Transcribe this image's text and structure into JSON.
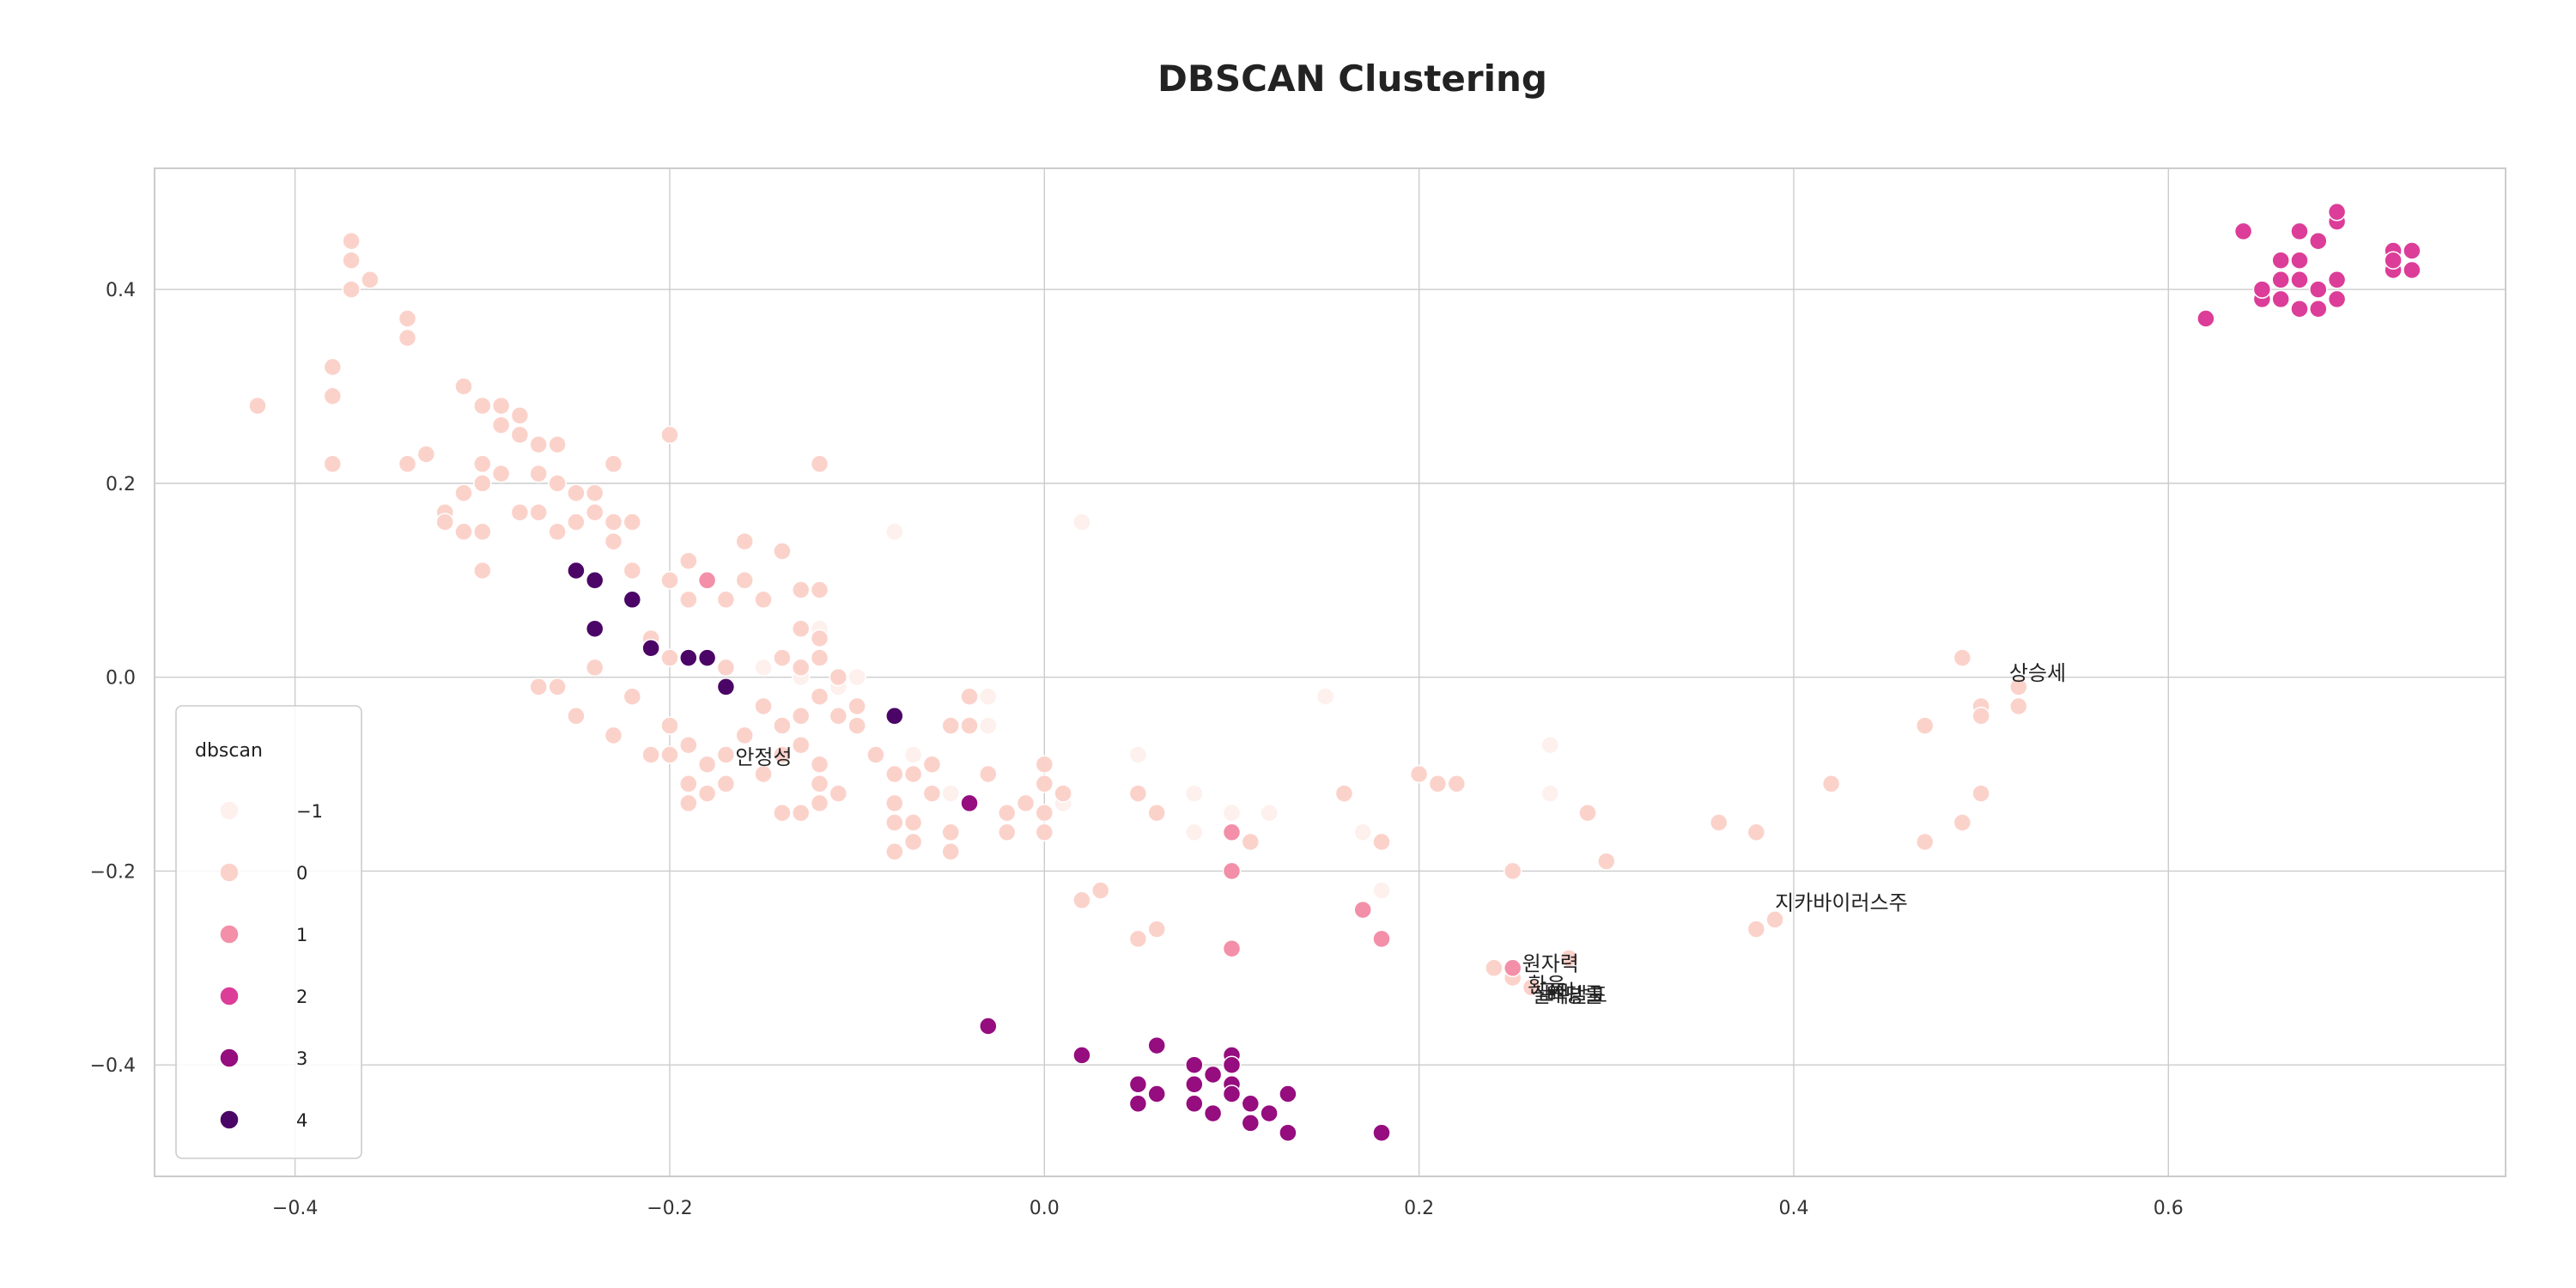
{
  "chart_data": {
    "type": "scatter",
    "title": "DBSCAN Clustering",
    "xlabel": "",
    "ylabel": "",
    "xlim": [
      -0.475,
      0.78
    ],
    "ylim": [
      -0.515,
      0.525
    ],
    "x_ticks": [
      -0.4,
      -0.2,
      0.0,
      0.2,
      0.4,
      0.6
    ],
    "x_tick_labels": [
      "−0.4",
      "−0.2",
      "0.0",
      "0.2",
      "0.4",
      "0.6"
    ],
    "y_ticks": [
      -0.4,
      -0.2,
      0.0,
      0.2,
      0.4
    ],
    "y_tick_labels": [
      "−0.4",
      "−0.2",
      "0.0",
      "0.2",
      "0.4"
    ],
    "grid": true,
    "legend": {
      "title": "dbscan",
      "position": "lower-left",
      "entries": [
        {
          "label": "−1",
          "color": "#fdf0ed"
        },
        {
          "label": "0",
          "color": "#fbd2ca"
        },
        {
          "label": "1",
          "color": "#f38fa8"
        },
        {
          "label": "2",
          "color": "#dc3d98"
        },
        {
          "label": "3",
          "color": "#950d7e"
        },
        {
          "label": "4",
          "color": "#4b0566"
        }
      ]
    },
    "series": [
      {
        "label": "−1",
        "color": "#fdf0ed",
        "points": [
          [
            -0.08,
            0.15
          ],
          [
            0.02,
            0.16
          ],
          [
            -0.13,
            0.0
          ],
          [
            -0.1,
            0.0
          ],
          [
            -0.15,
            0.01
          ],
          [
            -0.11,
            -0.01
          ],
          [
            -0.03,
            -0.02
          ],
          [
            -0.03,
            -0.05
          ],
          [
            -0.07,
            -0.08
          ],
          [
            0.05,
            -0.08
          ],
          [
            0.08,
            -0.12
          ],
          [
            0.1,
            -0.14
          ],
          [
            0.12,
            -0.14
          ],
          [
            0.15,
            -0.02
          ],
          [
            0.17,
            -0.16
          ],
          [
            0.18,
            -0.22
          ],
          [
            0.27,
            -0.07
          ],
          [
            0.27,
            -0.12
          ],
          [
            -0.05,
            -0.12
          ],
          [
            0.01,
            -0.13
          ],
          [
            -0.12,
            0.05
          ],
          [
            -0.14,
            0.13
          ],
          [
            0.08,
            -0.16
          ]
        ]
      },
      {
        "label": "0",
        "color": "#fbd2ca",
        "points": [
          [
            -0.42,
            0.28
          ],
          [
            -0.37,
            0.45
          ],
          [
            -0.37,
            0.43
          ],
          [
            -0.36,
            0.41
          ],
          [
            -0.37,
            0.4
          ],
          [
            -0.38,
            0.32
          ],
          [
            -0.38,
            0.29
          ],
          [
            -0.38,
            0.22
          ],
          [
            -0.34,
            0.37
          ],
          [
            -0.34,
            0.35
          ],
          [
            -0.33,
            0.23
          ],
          [
            -0.34,
            0.22
          ],
          [
            -0.32,
            0.17
          ],
          [
            -0.32,
            0.16
          ],
          [
            -0.31,
            0.3
          ],
          [
            -0.3,
            0.28
          ],
          [
            -0.29,
            0.28
          ],
          [
            -0.28,
            0.27
          ],
          [
            -0.29,
            0.26
          ],
          [
            -0.28,
            0.25
          ],
          [
            -0.27,
            0.24
          ],
          [
            -0.26,
            0.24
          ],
          [
            -0.3,
            0.22
          ],
          [
            -0.29,
            0.21
          ],
          [
            -0.3,
            0.2
          ],
          [
            -0.31,
            0.19
          ],
          [
            -0.27,
            0.21
          ],
          [
            -0.26,
            0.2
          ],
          [
            -0.25,
            0.19
          ],
          [
            -0.24,
            0.19
          ],
          [
            -0.24,
            0.17
          ],
          [
            -0.25,
            0.16
          ],
          [
            -0.26,
            0.15
          ],
          [
            -0.27,
            0.17
          ],
          [
            -0.28,
            0.17
          ],
          [
            -0.3,
            0.15
          ],
          [
            -0.31,
            0.15
          ],
          [
            -0.3,
            0.11
          ],
          [
            -0.23,
            0.22
          ],
          [
            -0.22,
            0.16
          ],
          [
            -0.23,
            0.16
          ],
          [
            -0.23,
            0.14
          ],
          [
            -0.22,
            0.11
          ],
          [
            -0.2,
            0.25
          ],
          [
            -0.19,
            0.12
          ],
          [
            -0.2,
            0.1
          ],
          [
            -0.19,
            0.08
          ],
          [
            -0.17,
            0.08
          ],
          [
            -0.16,
            0.14
          ],
          [
            -0.16,
            0.1
          ],
          [
            -0.15,
            0.08
          ],
          [
            -0.14,
            0.13
          ],
          [
            -0.13,
            0.09
          ],
          [
            -0.12,
            0.09
          ],
          [
            -0.12,
            0.22
          ],
          [
            -0.13,
            0.05
          ],
          [
            -0.12,
            0.04
          ],
          [
            -0.21,
            0.04
          ],
          [
            -0.2,
            0.02
          ],
          [
            -0.18,
            0.02
          ],
          [
            -0.17,
            0.01
          ],
          [
            -0.14,
            0.02
          ],
          [
            -0.13,
            0.01
          ],
          [
            -0.12,
            0.02
          ],
          [
            -0.11,
            0.0
          ],
          [
            -0.12,
            -0.02
          ],
          [
            -0.15,
            -0.03
          ],
          [
            -0.14,
            -0.05
          ],
          [
            -0.13,
            -0.04
          ],
          [
            -0.16,
            -0.06
          ],
          [
            -0.17,
            -0.08
          ],
          [
            -0.18,
            -0.09
          ],
          [
            -0.19,
            -0.07
          ],
          [
            -0.2,
            -0.08
          ],
          [
            -0.21,
            -0.08
          ],
          [
            -0.2,
            -0.05
          ],
          [
            -0.23,
            -0.06
          ],
          [
            -0.25,
            -0.04
          ],
          [
            -0.26,
            -0.01
          ],
          [
            -0.27,
            -0.01
          ],
          [
            -0.24,
            0.01
          ],
          [
            -0.22,
            -0.02
          ],
          [
            -0.19,
            -0.11
          ],
          [
            -0.19,
            -0.13
          ],
          [
            -0.18,
            -0.12
          ],
          [
            -0.17,
            -0.11
          ],
          [
            -0.15,
            -0.1
          ],
          [
            -0.14,
            -0.08
          ],
          [
            -0.13,
            -0.07
          ],
          [
            -0.12,
            -0.09
          ],
          [
            -0.12,
            -0.11
          ],
          [
            -0.12,
            -0.13
          ],
          [
            -0.13,
            -0.14
          ],
          [
            -0.14,
            -0.14
          ],
          [
            -0.1,
            -0.05
          ],
          [
            -0.09,
            -0.08
          ],
          [
            -0.08,
            -0.1
          ],
          [
            -0.07,
            -0.1
          ],
          [
            -0.08,
            -0.13
          ],
          [
            -0.08,
            -0.15
          ],
          [
            -0.07,
            -0.15
          ],
          [
            -0.08,
            -0.18
          ],
          [
            -0.07,
            -0.17
          ],
          [
            -0.05,
            -0.16
          ],
          [
            -0.05,
            -0.18
          ],
          [
            -0.06,
            -0.12
          ],
          [
            -0.06,
            -0.09
          ],
          [
            -0.05,
            -0.05
          ],
          [
            -0.04,
            -0.05
          ],
          [
            -0.04,
            -0.02
          ],
          [
            -0.03,
            -0.1
          ],
          [
            -0.02,
            -0.14
          ],
          [
            -0.02,
            -0.16
          ],
          [
            -0.01,
            -0.13
          ],
          [
            0.0,
            -0.14
          ],
          [
            0.01,
            -0.12
          ],
          [
            0.0,
            -0.11
          ],
          [
            0.0,
            -0.09
          ],
          [
            0.0,
            -0.16
          ],
          [
            0.02,
            -0.23
          ],
          [
            0.03,
            -0.22
          ],
          [
            0.05,
            -0.12
          ],
          [
            0.06,
            -0.14
          ],
          [
            0.05,
            -0.27
          ],
          [
            0.06,
            -0.26
          ],
          [
            0.1,
            -0.28
          ],
          [
            0.11,
            -0.17
          ],
          [
            0.16,
            -0.12
          ],
          [
            0.18,
            -0.17
          ],
          [
            0.2,
            -0.1
          ],
          [
            0.21,
            -0.11
          ],
          [
            0.22,
            -0.11
          ],
          [
            0.25,
            -0.2
          ],
          [
            0.24,
            -0.3
          ],
          [
            0.25,
            -0.31
          ],
          [
            0.26,
            -0.32
          ],
          [
            0.28,
            -0.29
          ],
          [
            0.29,
            -0.14
          ],
          [
            0.3,
            -0.19
          ],
          [
            0.36,
            -0.15
          ],
          [
            0.38,
            -0.16
          ],
          [
            0.38,
            -0.26
          ],
          [
            0.39,
            -0.25
          ],
          [
            0.42,
            -0.11
          ],
          [
            0.47,
            -0.05
          ],
          [
            0.47,
            -0.17
          ],
          [
            0.49,
            -0.15
          ],
          [
            0.5,
            -0.12
          ],
          [
            0.49,
            0.02
          ],
          [
            0.5,
            -0.03
          ],
          [
            0.5,
            -0.04
          ],
          [
            0.52,
            -0.01
          ],
          [
            0.52,
            -0.03
          ],
          [
            -0.11,
            -0.04
          ],
          [
            -0.1,
            -0.03
          ],
          [
            -0.11,
            -0.12
          ]
        ]
      },
      {
        "label": "1",
        "color": "#f38fa8",
        "points": [
          [
            -0.18,
            0.1
          ],
          [
            0.1,
            -0.16
          ],
          [
            0.1,
            -0.2
          ],
          [
            0.1,
            -0.28
          ],
          [
            0.17,
            -0.24
          ],
          [
            0.18,
            -0.27
          ],
          [
            0.25,
            -0.3
          ]
        ]
      },
      {
        "label": "2",
        "color": "#dc3d98",
        "points": [
          [
            0.62,
            0.37
          ],
          [
            0.64,
            0.46
          ],
          [
            0.65,
            0.39
          ],
          [
            0.65,
            0.4
          ],
          [
            0.66,
            0.39
          ],
          [
            0.66,
            0.41
          ],
          [
            0.66,
            0.43
          ],
          [
            0.67,
            0.43
          ],
          [
            0.67,
            0.46
          ],
          [
            0.67,
            0.41
          ],
          [
            0.67,
            0.38
          ],
          [
            0.68,
            0.38
          ],
          [
            0.68,
            0.4
          ],
          [
            0.68,
            0.45
          ],
          [
            0.69,
            0.47
          ],
          [
            0.69,
            0.48
          ],
          [
            0.69,
            0.41
          ],
          [
            0.69,
            0.39
          ],
          [
            0.72,
            0.44
          ],
          [
            0.72,
            0.42
          ],
          [
            0.72,
            0.43
          ],
          [
            0.73,
            0.44
          ],
          [
            0.73,
            0.42
          ]
        ]
      },
      {
        "label": "3",
        "color": "#950d7e",
        "points": [
          [
            -0.03,
            -0.36
          ],
          [
            -0.04,
            -0.13
          ],
          [
            0.02,
            -0.39
          ],
          [
            0.05,
            -0.42
          ],
          [
            0.05,
            -0.44
          ],
          [
            0.06,
            -0.43
          ],
          [
            0.06,
            -0.38
          ],
          [
            0.08,
            -0.44
          ],
          [
            0.08,
            -0.42
          ],
          [
            0.08,
            -0.4
          ],
          [
            0.09,
            -0.41
          ],
          [
            0.09,
            -0.45
          ],
          [
            0.1,
            -0.39
          ],
          [
            0.1,
            -0.4
          ],
          [
            0.1,
            -0.42
          ],
          [
            0.1,
            -0.43
          ],
          [
            0.11,
            -0.46
          ],
          [
            0.11,
            -0.44
          ],
          [
            0.12,
            -0.45
          ],
          [
            0.13,
            -0.43
          ],
          [
            0.13,
            -0.47
          ],
          [
            0.18,
            -0.47
          ]
        ]
      },
      {
        "label": "4",
        "color": "#4b0566",
        "points": [
          [
            -0.25,
            0.11
          ],
          [
            -0.24,
            0.1
          ],
          [
            -0.24,
            0.05
          ],
          [
            -0.22,
            0.08
          ],
          [
            -0.21,
            0.03
          ],
          [
            -0.19,
            0.02
          ],
          [
            -0.18,
            0.02
          ],
          [
            -0.17,
            -0.01
          ],
          [
            -0.08,
            -0.04
          ]
        ]
      }
    ],
    "annotations": [
      {
        "text": "상승세",
        "x": 0.515,
        "y": -0.003
      },
      {
        "text": "안정성",
        "x": -0.165,
        "y": -0.09
      },
      {
        "text": "지카바이러스주",
        "x": 0.39,
        "y": -0.24
      },
      {
        "text": "원자력",
        "x": 0.255,
        "y": -0.303
      },
      {
        "text": "환율",
        "x": 0.258,
        "y": -0.325
      },
      {
        "text": "금리",
        "x": 0.263,
        "y": -0.332
      },
      {
        "text": "실적발표",
        "x": 0.26,
        "y": -0.335
      },
      {
        "text": "배당률",
        "x": 0.268,
        "y": -0.335
      }
    ]
  }
}
